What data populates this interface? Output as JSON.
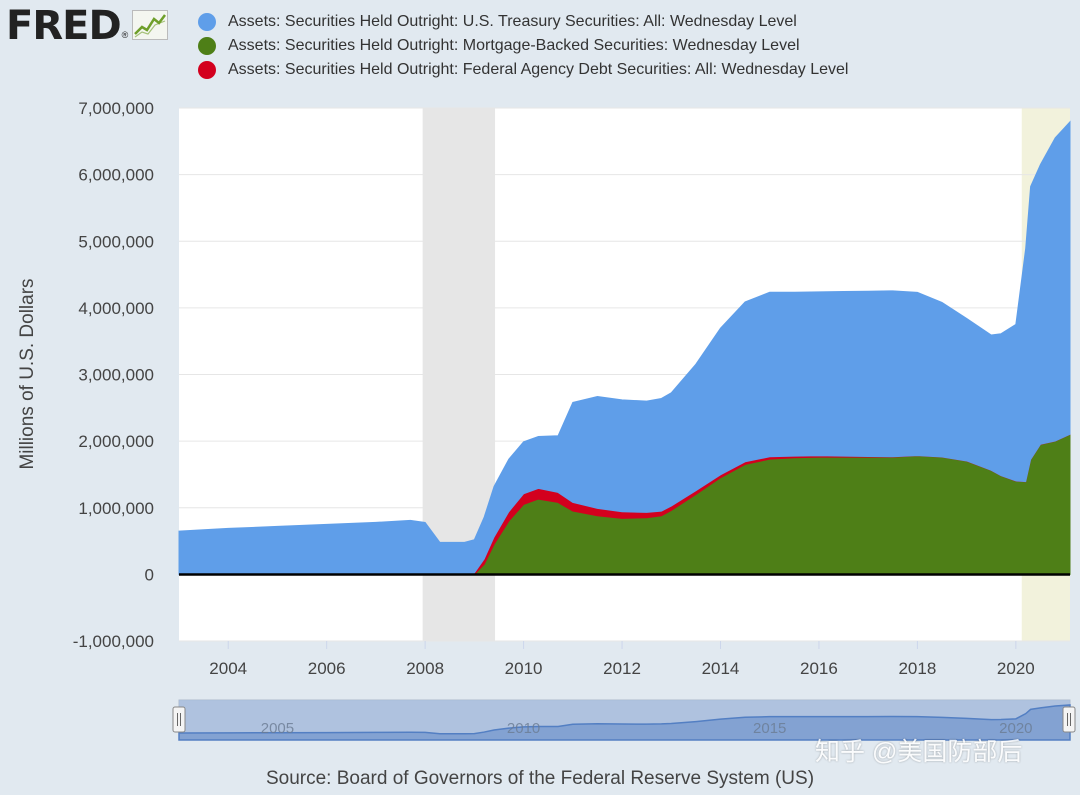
{
  "brand": {
    "logo_text": "FRED",
    "registered_mark": "®",
    "logo_icon": "line-chart-icon"
  },
  "footer": {
    "source": "Source: Board of Governors of the Federal Reserve System (US)"
  },
  "watermark": {
    "text": "知乎 @美国防部后"
  },
  "colors": {
    "page_background": "#e1e9f0",
    "plot_background": "#ffffff",
    "treasury": "#5f9ee9",
    "mbs": "#4e7f17",
    "agency": "#d3001e",
    "recession": "#e6e6e6",
    "partial_period": "#f2f2dc",
    "navigator_fill": "#a8bddd",
    "navigator_line": "#4a78c0"
  },
  "chart_data": {
    "type": "area",
    "stacked": true,
    "title": "",
    "xlabel": "",
    "ylabel": "Millions of U.S. Dollars",
    "xlim": [
      2003.0,
      2021.1
    ],
    "ylim": [
      -1000000,
      7000000
    ],
    "x_ticks": [
      "2004",
      "2006",
      "2008",
      "2010",
      "2012",
      "2014",
      "2016",
      "2018",
      "2020"
    ],
    "y_ticks": [
      "7,000,000",
      "6,000,000",
      "5,000,000",
      "4,000,000",
      "3,000,000",
      "2,000,000",
      "1,000,000",
      "0",
      "-1,000,000"
    ],
    "grid": "horizontal",
    "legend_position": "top",
    "shaded_periods": [
      {
        "kind": "recession",
        "from": 2007.95,
        "to": 2009.42
      },
      {
        "kind": "recession",
        "from": 2020.12,
        "to": 2021.1
      }
    ],
    "x": [
      2003.0,
      2004.0,
      2005.0,
      2006.0,
      2007.0,
      2007.7,
      2008.0,
      2008.3,
      2008.8,
      2009.0,
      2009.2,
      2009.4,
      2009.7,
      2010.0,
      2010.3,
      2010.7,
      2011.0,
      2011.5,
      2012.0,
      2012.5,
      2012.8,
      2013.0,
      2013.5,
      2014.0,
      2014.5,
      2015.0,
      2015.5,
      2016.0,
      2016.5,
      2017.0,
      2017.5,
      2018.0,
      2018.5,
      2019.0,
      2019.5,
      2019.7,
      2020.0,
      2020.2,
      2020.3,
      2020.5,
      2020.8,
      2021.1
    ],
    "series": [
      {
        "name": "Assets: Securities Held Outright: Mortgage-Backed Securities: Wednesday Level",
        "color_key": "mbs",
        "values": [
          0,
          0,
          0,
          0,
          0,
          0,
          0,
          0,
          0,
          0,
          150000,
          450000,
          800000,
          1050000,
          1130000,
          1080000,
          950000,
          880000,
          840000,
          850000,
          880000,
          960000,
          1200000,
          1450000,
          1650000,
          1730000,
          1750000,
          1760000,
          1760000,
          1760000,
          1760000,
          1780000,
          1760000,
          1700000,
          1560000,
          1480000,
          1400000,
          1390000,
          1720000,
          1950000,
          2000000,
          2100000
        ]
      },
      {
        "name": "Assets: Securities Held Outright: Federal Agency Debt Securities: All: Wednesday Level",
        "color_key": "agency",
        "values": [
          0,
          0,
          0,
          0,
          0,
          0,
          0,
          0,
          0,
          20000,
          80000,
          110000,
          140000,
          160000,
          160000,
          150000,
          130000,
          110000,
          100000,
          80000,
          70000,
          65000,
          55000,
          45000,
          40000,
          35000,
          25000,
          20000,
          15000,
          10000,
          5000,
          3000,
          2400,
          2400,
          2400,
          2400,
          2400,
          2400,
          2400,
          2400,
          2400,
          2400
        ]
      },
      {
        "name": "Assets: Securities Held Outright: U.S. Treasury Securities: All: Wednesday Level",
        "color_key": "treasury",
        "values": [
          650000,
          690000,
          720000,
          750000,
          780000,
          810000,
          780000,
          480000,
          480000,
          500000,
          630000,
          760000,
          790000,
          780000,
          780000,
          850000,
          1500000,
          1680000,
          1680000,
          1670000,
          1690000,
          1700000,
          1900000,
          2200000,
          2400000,
          2470000,
          2460000,
          2460000,
          2470000,
          2480000,
          2490000,
          2450000,
          2320000,
          2140000,
          2030000,
          2130000,
          2350000,
          3500000,
          4100000,
          4200000,
          4550000,
          4690000
        ]
      }
    ],
    "navigator": {
      "tick_labels": [
        "2005",
        "2010",
        "2015",
        "2020"
      ],
      "handle_icon": "drag-handle-icon"
    }
  }
}
